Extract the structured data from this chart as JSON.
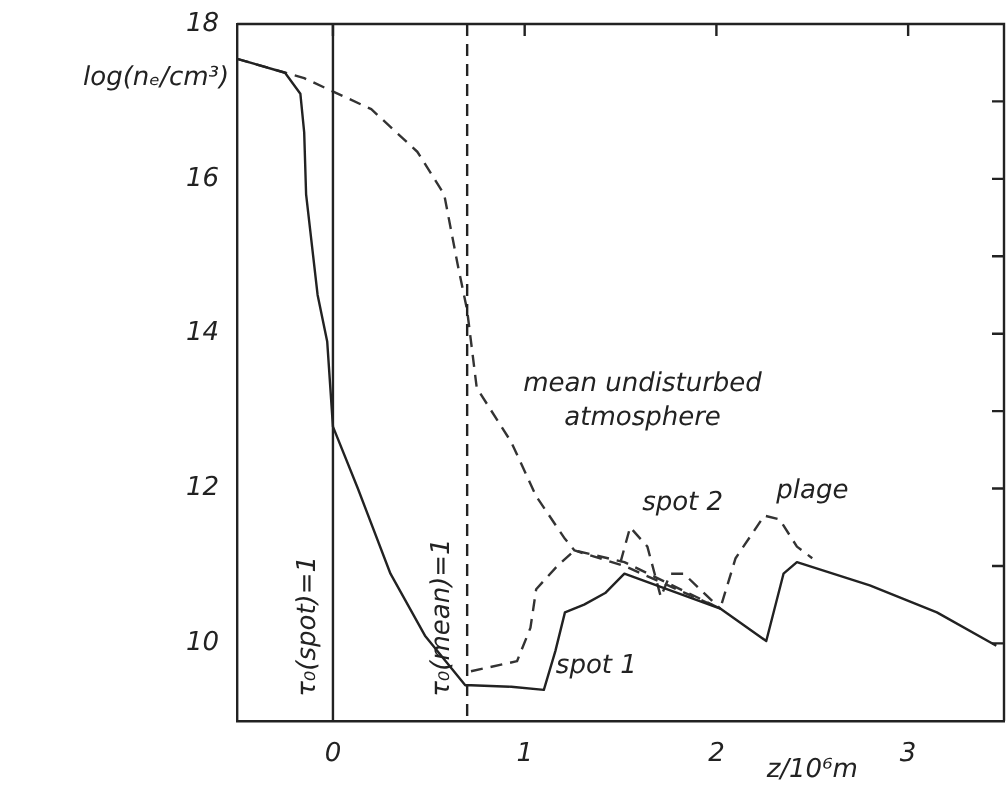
{
  "chart_data": {
    "type": "line",
    "xlabel": "z/10⁶m",
    "ylabel": "log(nₑ/cm³)",
    "xlim": [
      -0.5,
      3.5
    ],
    "ylim": [
      9,
      18
    ],
    "xticks": [
      0,
      1,
      2,
      3
    ],
    "yticks": [
      10,
      {
        "value": 11,
        "label": null
      },
      12,
      {
        "value": 13,
        "label": null
      },
      14,
      {
        "value": 15,
        "label": null
      },
      16,
      {
        "value": 17,
        "label": null
      },
      18
    ],
    "grid": false,
    "legend": false,
    "marker": "none",
    "series": [
      {
        "color": "#222222",
        "line_style": "solid",
        "x": [
          -0.5,
          -0.25,
          -0.17,
          -0.15,
          -0.14,
          -0.08,
          -0.03,
          0,
          0.13,
          0.3,
          0.48,
          0.69,
          0.72,
          0.93,
          1.1,
          1.16,
          1.21,
          1.31,
          1.42,
          1.52,
          2.02,
          2.26,
          2.35,
          2.42,
          2.8,
          3.15,
          3.46
        ],
        "values": [
          17.55,
          17.37,
          17.1,
          16.6,
          15.8,
          14.5,
          13.9,
          12.8,
          12.0,
          10.9,
          10.1,
          9.46,
          9.46,
          9.44,
          9.4,
          9.9,
          10.4,
          10.5,
          10.65,
          10.9,
          10.45,
          10.03,
          10.9,
          11.05,
          10.75,
          10.4,
          9.97
        ]
      },
      {
        "color": "#333333",
        "line_style": "dashed",
        "x": [
          -0.5,
          -0.15,
          0.2,
          0.44,
          0.58,
          0.65,
          0.7,
          0.75,
          0.93,
          1.06,
          1.21,
          1.26,
          1.52,
          2.02
        ],
        "values": [
          17.55,
          17.3,
          16.9,
          16.35,
          15.8,
          14.9,
          14.3,
          13.3,
          12.6,
          11.9,
          11.35,
          11.2,
          11.0,
          10.45
        ]
      },
      {
        "color": "#333333",
        "line_style": "dashed",
        "x": [
          0.72,
          0.96,
          1.03,
          1.06,
          1.17,
          1.26,
          1.52,
          2.02,
          2.1,
          2.25,
          2.33,
          2.42,
          2.5
        ],
        "values": [
          9.64,
          9.77,
          10.2,
          10.7,
          11.0,
          11.2,
          11.05,
          10.45,
          11.1,
          11.65,
          11.6,
          11.25,
          11.1
        ]
      },
      {
        "color": "#333333",
        "line_style": "dashed",
        "x": [
          1.5,
          1.55,
          1.64,
          1.71,
          1.76,
          1.83,
          2.02
        ],
        "values": [
          11.05,
          11.5,
          11.25,
          10.6,
          10.9,
          10.9,
          10.45
        ]
      }
    ],
    "ref_lines": [
      {
        "axis": "x",
        "value": 0,
        "line_style": "solid"
      },
      {
        "axis": "x",
        "value": 0.7,
        "line_style": "dashed"
      }
    ],
    "annotations": [
      {
        "text": "mean undisturbed atmosphere",
        "x": 0.93,
        "y": 12.6
      },
      {
        "text": "spot 2",
        "x": 1.55,
        "y": 11.5
      },
      {
        "text": "plage",
        "x": 2.25,
        "y": 11.65
      },
      {
        "text": "spot 1",
        "x": 1.1,
        "y": 9.4
      },
      {
        "text": "τ₀(spot)=1",
        "x": 0
      },
      {
        "text": "τ₀(mean)=1",
        "x": 0.7
      }
    ]
  }
}
